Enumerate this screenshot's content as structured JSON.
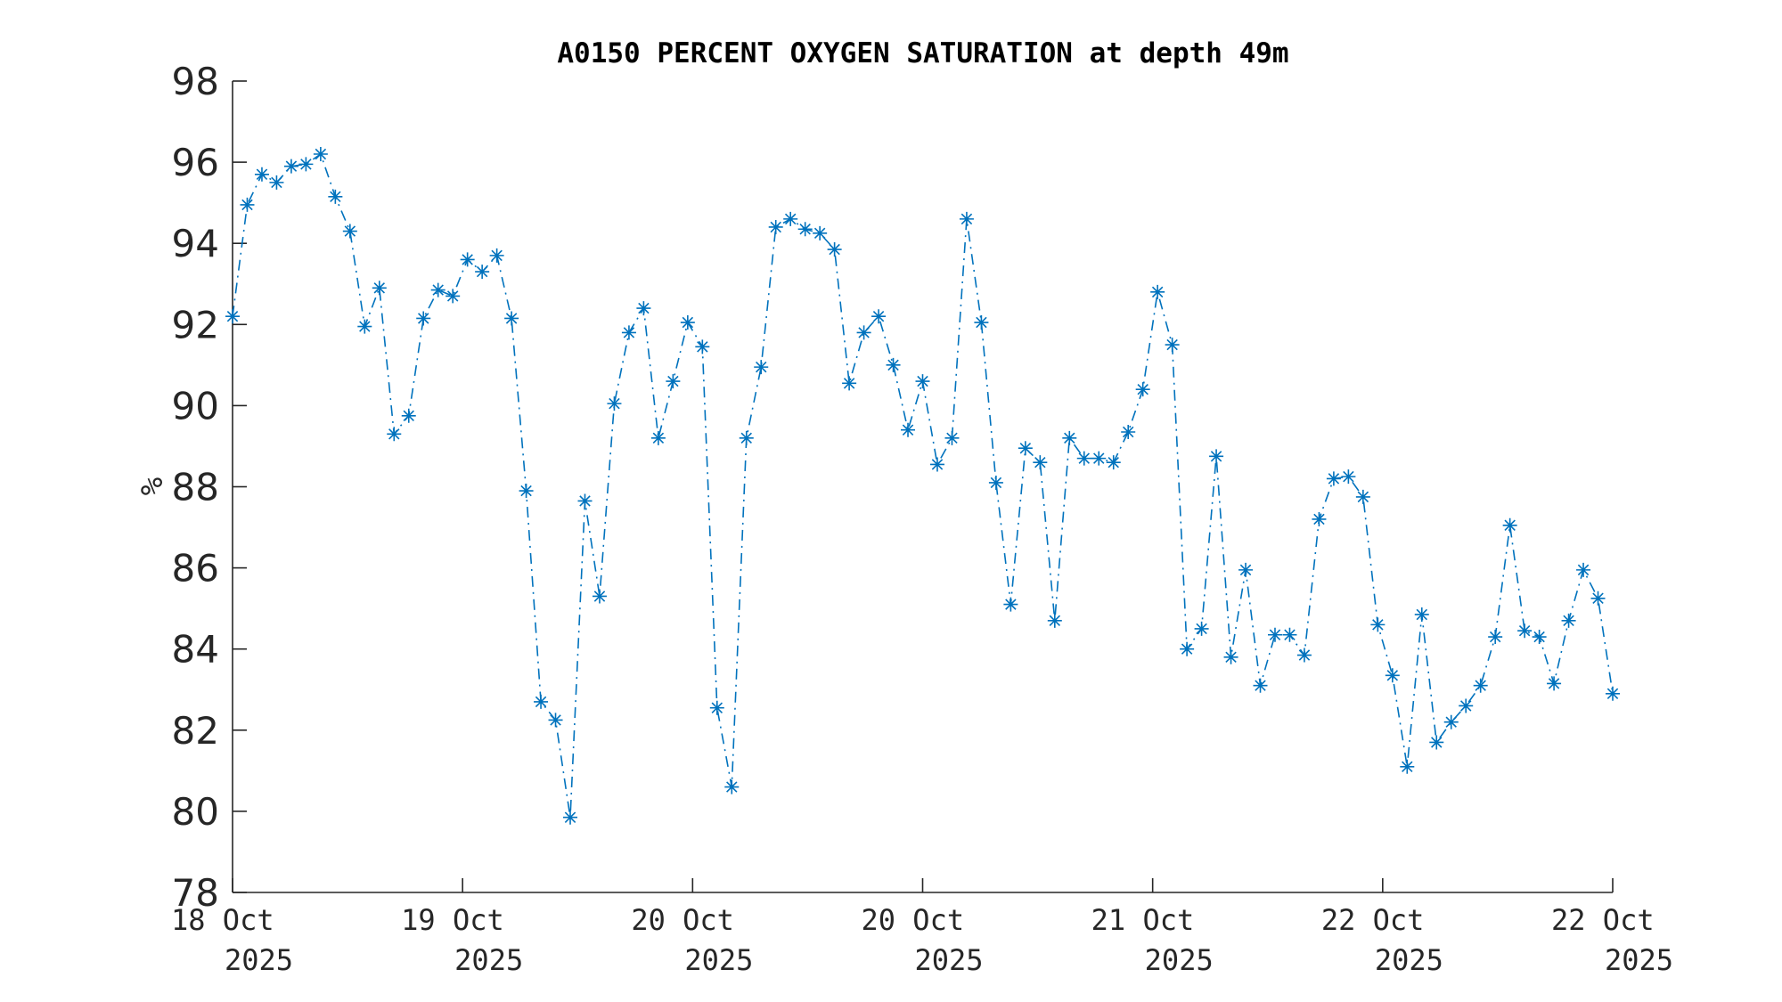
{
  "chart_data": {
    "type": "line",
    "title": "A0150 PERCENT OXYGEN SATURATION at depth 49m",
    "xlabel": "",
    "ylabel": "%",
    "ylim": [
      78,
      98
    ],
    "yticks": [
      78,
      80,
      82,
      84,
      86,
      88,
      90,
      92,
      94,
      96,
      98
    ],
    "xticks": [
      {
        "date": "18 Oct",
        "year": "2025"
      },
      {
        "date": "19 Oct",
        "year": "2025"
      },
      {
        "date": "20 Oct",
        "year": "2025"
      },
      {
        "date": "20 Oct",
        "year": "2025"
      },
      {
        "date": "21 Oct",
        "year": "2025"
      },
      {
        "date": "22 Oct",
        "year": "2025"
      },
      {
        "date": "22 Oct",
        "year": "2025"
      }
    ],
    "x_spacing": "evenly spaced samples spanning the first to last tick",
    "grid": false,
    "line_style": "dash-dot",
    "marker": "asterisk",
    "color": "#0072BD",
    "series": [
      {
        "values": [
          92.2,
          94.95,
          95.7,
          95.5,
          95.9,
          95.95,
          96.2,
          95.15,
          94.3,
          91.95,
          92.9,
          89.3,
          89.75,
          92.15,
          92.85,
          92.7,
          93.6,
          93.3,
          93.7,
          92.15,
          87.9,
          82.7,
          82.25,
          79.85,
          87.65,
          85.3,
          90.05,
          91.8,
          92.4,
          89.2,
          90.6,
          92.05,
          91.45,
          82.55,
          80.6,
          89.2,
          90.95,
          94.4,
          94.6,
          94.35,
          94.25,
          93.85,
          90.55,
          91.8,
          92.2,
          91.0,
          89.4,
          90.6,
          88.55,
          89.2,
          94.6,
          92.05,
          88.1,
          85.1,
          88.95,
          88.6,
          84.7,
          89.2,
          88.7,
          88.7,
          88.6,
          89.35,
          90.4,
          92.8,
          91.5,
          84.0,
          84.5,
          88.75,
          83.8,
          85.95,
          83.1,
          84.35,
          84.35,
          83.85,
          87.2,
          88.2,
          88.25,
          87.75,
          84.6,
          83.35,
          81.1,
          84.85,
          81.7,
          82.2,
          82.6,
          83.1,
          84.3,
          87.05,
          84.45,
          84.3,
          83.15,
          84.7,
          85.95,
          85.25,
          82.9
        ]
      }
    ]
  }
}
